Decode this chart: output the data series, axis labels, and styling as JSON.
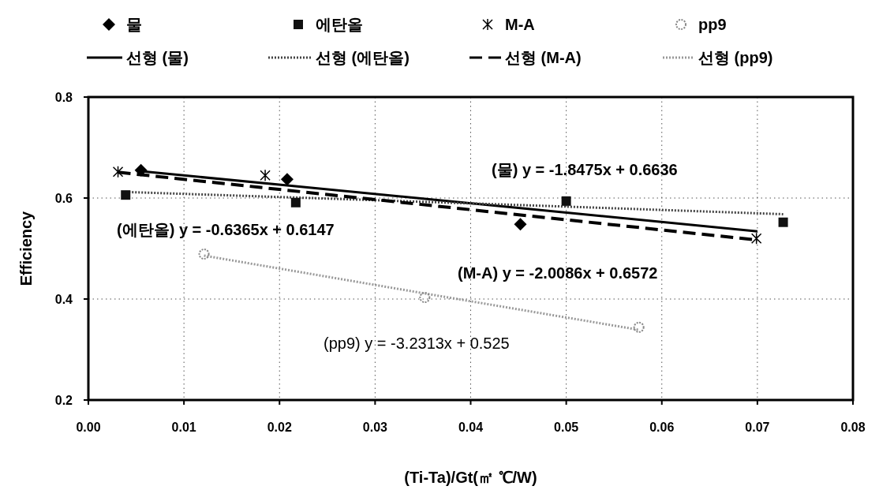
{
  "chart_data": {
    "type": "scatter",
    "xlabel": "(Ti-Ta)/Gt(㎡ ℃/W)",
    "ylabel": "Efficiency",
    "xlim": [
      0,
      0.08
    ],
    "ylim": [
      0.2,
      0.8
    ],
    "xticks": [
      {
        "value": 0,
        "label": "0.00"
      },
      {
        "value": 0.01,
        "label": "0.01"
      },
      {
        "value": 0.02,
        "label": "0.02"
      },
      {
        "value": 0.03,
        "label": "0.03"
      },
      {
        "value": 0.04,
        "label": "0.04"
      },
      {
        "value": 0.05,
        "label": "0.05"
      },
      {
        "value": 0.06,
        "label": "0.06"
      },
      {
        "value": 0.07,
        "label": "0.07"
      },
      {
        "value": 0.08,
        "label": "0.08"
      }
    ],
    "yticks": [
      0.2,
      0.4,
      0.6,
      0.8
    ],
    "grid": true,
    "legend": "top",
    "series": [
      {
        "type": "scatter",
        "name": "물",
        "color": "#000000",
        "marker": "diamond",
        "x": [
          0.0055,
          0.0208,
          0.0452
        ],
        "values": [
          0.655,
          0.637,
          0.548
        ]
      },
      {
        "type": "scatter",
        "name": "에탄올",
        "color": "#111111",
        "marker": "square",
        "x": [
          0.0039,
          0.0217,
          0.05,
          0.0727
        ],
        "values": [
          0.606,
          0.591,
          0.594,
          0.552
        ]
      },
      {
        "type": "scatter",
        "name": "M-A",
        "color": "#000000",
        "marker": "cross",
        "x": [
          0.0031,
          0.0185,
          0.0699
        ],
        "values": [
          0.652,
          0.645,
          0.52
        ]
      },
      {
        "type": "scatter",
        "name": "pp9",
        "color": "#888888",
        "marker": "circle",
        "x": [
          0.0121,
          0.0352,
          0.0576
        ],
        "values": [
          0.489,
          0.403,
          0.344
        ]
      },
      {
        "type": "line",
        "name": "선형 (물)",
        "color": "#000000",
        "line_style": "solid",
        "x": [
          0.0055,
          0.0208,
          0.0452,
          0.07
        ],
        "values": [
          0.653,
          0.625,
          0.58,
          0.534
        ]
      },
      {
        "type": "line",
        "name": "선형 (에탄올)",
        "color": "#444444",
        "line_style": "dotted",
        "x": [
          0.0039,
          0.0217,
          0.05,
          0.0727
        ],
        "values": [
          0.612,
          0.601,
          0.583,
          0.568
        ]
      },
      {
        "type": "line",
        "name": "선형 (M-A)",
        "color": "#000000",
        "line_style": "dashed",
        "x": [
          0.0031,
          0.0185,
          0.0699
        ],
        "values": [
          0.651,
          0.62,
          0.517
        ]
      },
      {
        "type": "line",
        "name": "선형 (pp9)",
        "color": "#999999",
        "line_style": "dotted",
        "x": [
          0.0121,
          0.0352,
          0.0576
        ],
        "values": [
          0.486,
          0.411,
          0.339
        ]
      }
    ],
    "annotations": [
      "(물) y = -1.8475x + 0.6636",
      "(에탄올) y = -0.6365x + 0.6147",
      "(M-A) y = -2.0086x + 0.6572",
      "(pp9) y = -3.2313x + 0.525"
    ]
  }
}
